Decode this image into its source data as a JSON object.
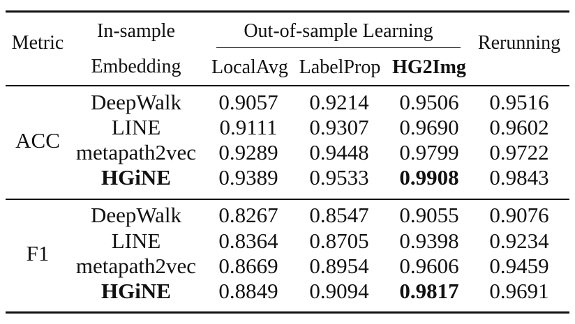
{
  "header": {
    "metric": "Metric",
    "in_sample_1": "In-sample",
    "in_sample_2": "Embedding",
    "out_of_sample": "Out-of-sample Learning",
    "local_avg": "LocalAvg",
    "label_prop": "LabelProp",
    "hg2img": "HG2Img",
    "rerunning": "Rerunning"
  },
  "groups": [
    {
      "metric": "ACC",
      "rows": [
        {
          "embedding": "DeepWalk",
          "local_avg": "0.9057",
          "label_prop": "0.9214",
          "hg2img": "0.9506",
          "rerunning": "0.9516"
        },
        {
          "embedding": "LINE",
          "local_avg": "0.9111",
          "label_prop": "0.9307",
          "hg2img": "0.9690",
          "rerunning": "0.9602"
        },
        {
          "embedding": "metapath2vec",
          "local_avg": "0.9289",
          "label_prop": "0.9448",
          "hg2img": "0.9799",
          "rerunning": "0.9722"
        },
        {
          "embedding": "HGiNE",
          "local_avg": "0.9389",
          "label_prop": "0.9533",
          "hg2img": "0.9908",
          "rerunning": "0.9843"
        }
      ]
    },
    {
      "metric": "F1",
      "rows": [
        {
          "embedding": "DeepWalk",
          "local_avg": "0.8267",
          "label_prop": "0.8547",
          "hg2img": "0.9055",
          "rerunning": "0.9076"
        },
        {
          "embedding": "LINE",
          "local_avg": "0.8364",
          "label_prop": "0.8705",
          "hg2img": "0.9398",
          "rerunning": "0.9234"
        },
        {
          "embedding": "metapath2vec",
          "local_avg": "0.8669",
          "label_prop": "0.8954",
          "hg2img": "0.9606",
          "rerunning": "0.9459"
        },
        {
          "embedding": "HGiNE",
          "local_avg": "0.8849",
          "label_prop": "0.9094",
          "hg2img": "0.9817",
          "rerunning": "0.9691"
        }
      ]
    }
  ]
}
